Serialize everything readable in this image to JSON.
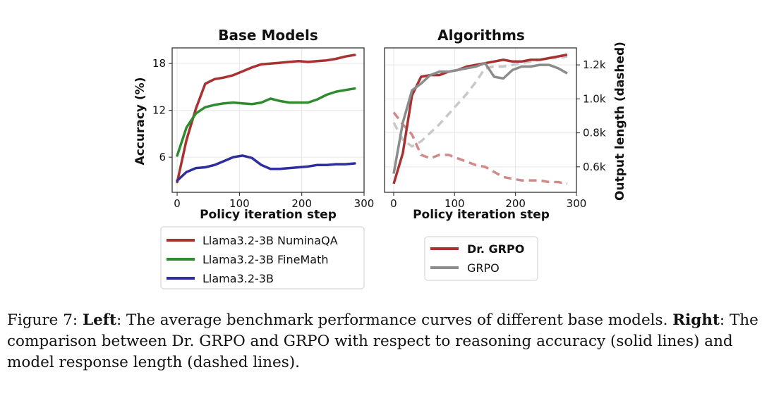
{
  "chart_data": [
    {
      "type": "line",
      "title": "Base Models",
      "xlabel": "Policy iteration step",
      "ylabel": "Accuracy (%)",
      "xlim": [
        -8,
        300
      ],
      "ylim": [
        1.5,
        20.0
      ],
      "xticks": [
        "0",
        "100",
        "200",
        "300"
      ],
      "yticks": [
        "6",
        "12",
        "18"
      ],
      "grid": true,
      "legend_position": "bottom",
      "series": [
        {
          "name": "Llama3.2-3B NuminaQA",
          "color": "#a83232",
          "style": "solid",
          "x": [
            0,
            15,
            30,
            45,
            60,
            75,
            90,
            105,
            120,
            135,
            150,
            165,
            180,
            195,
            210,
            225,
            240,
            255,
            270,
            285
          ],
          "y": [
            2.8,
            8.2,
            12.2,
            15.4,
            16.0,
            16.2,
            16.5,
            17.0,
            17.5,
            17.9,
            18.0,
            18.1,
            18.2,
            18.3,
            18.2,
            18.3,
            18.4,
            18.6,
            18.9,
            19.1
          ]
        },
        {
          "name": "Llama3.2-3B FineMath",
          "color": "#2e8b2e",
          "style": "solid",
          "x": [
            0,
            15,
            30,
            45,
            60,
            75,
            90,
            105,
            120,
            135,
            150,
            165,
            180,
            195,
            210,
            225,
            240,
            255,
            270,
            285
          ],
          "y": [
            6.2,
            9.8,
            11.6,
            12.4,
            12.7,
            12.9,
            13.0,
            12.9,
            12.8,
            13.0,
            13.5,
            13.2,
            13.0,
            13.0,
            13.0,
            13.4,
            14.0,
            14.4,
            14.6,
            14.8
          ]
        },
        {
          "name": "Llama3.2-3B",
          "color": "#2e2e9e",
          "style": "solid",
          "x": [
            0,
            15,
            30,
            45,
            60,
            75,
            90,
            105,
            120,
            135,
            150,
            165,
            180,
            195,
            210,
            225,
            240,
            255,
            270,
            285
          ],
          "y": [
            3.0,
            4.1,
            4.6,
            4.7,
            5.0,
            5.5,
            6.0,
            6.2,
            5.9,
            5.0,
            4.5,
            4.5,
            4.6,
            4.7,
            4.8,
            5.0,
            5.0,
            5.1,
            5.1,
            5.2
          ]
        }
      ]
    },
    {
      "type": "line",
      "title": "Algorithms",
      "xlabel": "Policy iteration step",
      "ylabel_right": "Output length (dashed)",
      "xlim": [
        -15,
        300
      ],
      "ylim_right": [
        0.45,
        1.3
      ],
      "xticks": [
        "0",
        "100",
        "200",
        "300"
      ],
      "yticks_right": [
        "0.6k",
        "0.8k",
        "1.0k",
        "1.2k"
      ],
      "grid": true,
      "legend_position": "bottom",
      "legend": [
        "Dr. GRPO",
        "GRPO"
      ],
      "series": [
        {
          "name": "Dr. GRPO",
          "color": "#a83232",
          "style": "solid",
          "axis": "left",
          "x": [
            0,
            15,
            30,
            45,
            60,
            75,
            90,
            105,
            120,
            135,
            150,
            165,
            180,
            195,
            210,
            225,
            240,
            255,
            270,
            285
          ],
          "y": [
            0.5,
            0.68,
            1.02,
            1.13,
            1.14,
            1.14,
            1.16,
            1.17,
            1.19,
            1.2,
            1.21,
            1.22,
            1.23,
            1.22,
            1.22,
            1.23,
            1.23,
            1.24,
            1.25,
            1.26
          ]
        },
        {
          "name": "GRPO",
          "color": "#8c8c8c",
          "style": "solid",
          "axis": "left",
          "x": [
            0,
            15,
            30,
            45,
            60,
            75,
            90,
            105,
            120,
            135,
            150,
            165,
            180,
            195,
            210,
            225,
            240,
            255,
            270,
            285
          ],
          "y": [
            0.56,
            0.86,
            1.05,
            1.09,
            1.14,
            1.16,
            1.16,
            1.17,
            1.18,
            1.19,
            1.21,
            1.13,
            1.12,
            1.17,
            1.19,
            1.19,
            1.2,
            1.2,
            1.18,
            1.15
          ]
        },
        {
          "name": "Dr. GRPO length",
          "color": "#d08a8a",
          "style": "dashed",
          "axis": "right",
          "x": [
            0,
            15,
            30,
            45,
            60,
            75,
            90,
            105,
            120,
            135,
            150,
            165,
            180,
            195,
            210,
            225,
            240,
            255,
            270,
            285
          ],
          "y": [
            0.92,
            0.85,
            0.79,
            0.67,
            0.65,
            0.67,
            0.67,
            0.65,
            0.63,
            0.61,
            0.6,
            0.57,
            0.54,
            0.53,
            0.52,
            0.52,
            0.52,
            0.51,
            0.51,
            0.5
          ]
        },
        {
          "name": "GRPO length",
          "color": "#c8c8c8",
          "style": "dashed",
          "axis": "right",
          "x": [
            0,
            15,
            30,
            45,
            60,
            75,
            90,
            105,
            120,
            135,
            150,
            165,
            180,
            195,
            210,
            225,
            240,
            255,
            270,
            285
          ],
          "y": [
            0.86,
            0.76,
            0.72,
            0.75,
            0.8,
            0.85,
            0.91,
            0.97,
            1.03,
            1.1,
            1.18,
            1.19,
            1.19,
            1.2,
            1.21,
            1.22,
            1.23,
            1.24,
            1.24,
            1.25
          ]
        }
      ]
    }
  ],
  "caption": {
    "prefix": "Figure 7: ",
    "left_label": "Left",
    "left_text": ": The average benchmark performance curves of different base models. ",
    "right_label": "Right",
    "right_text": ": The comparison between Dr. GRPO and GRPO with respect to reasoning accuracy (solid lines) and model response length (dashed lines)."
  }
}
